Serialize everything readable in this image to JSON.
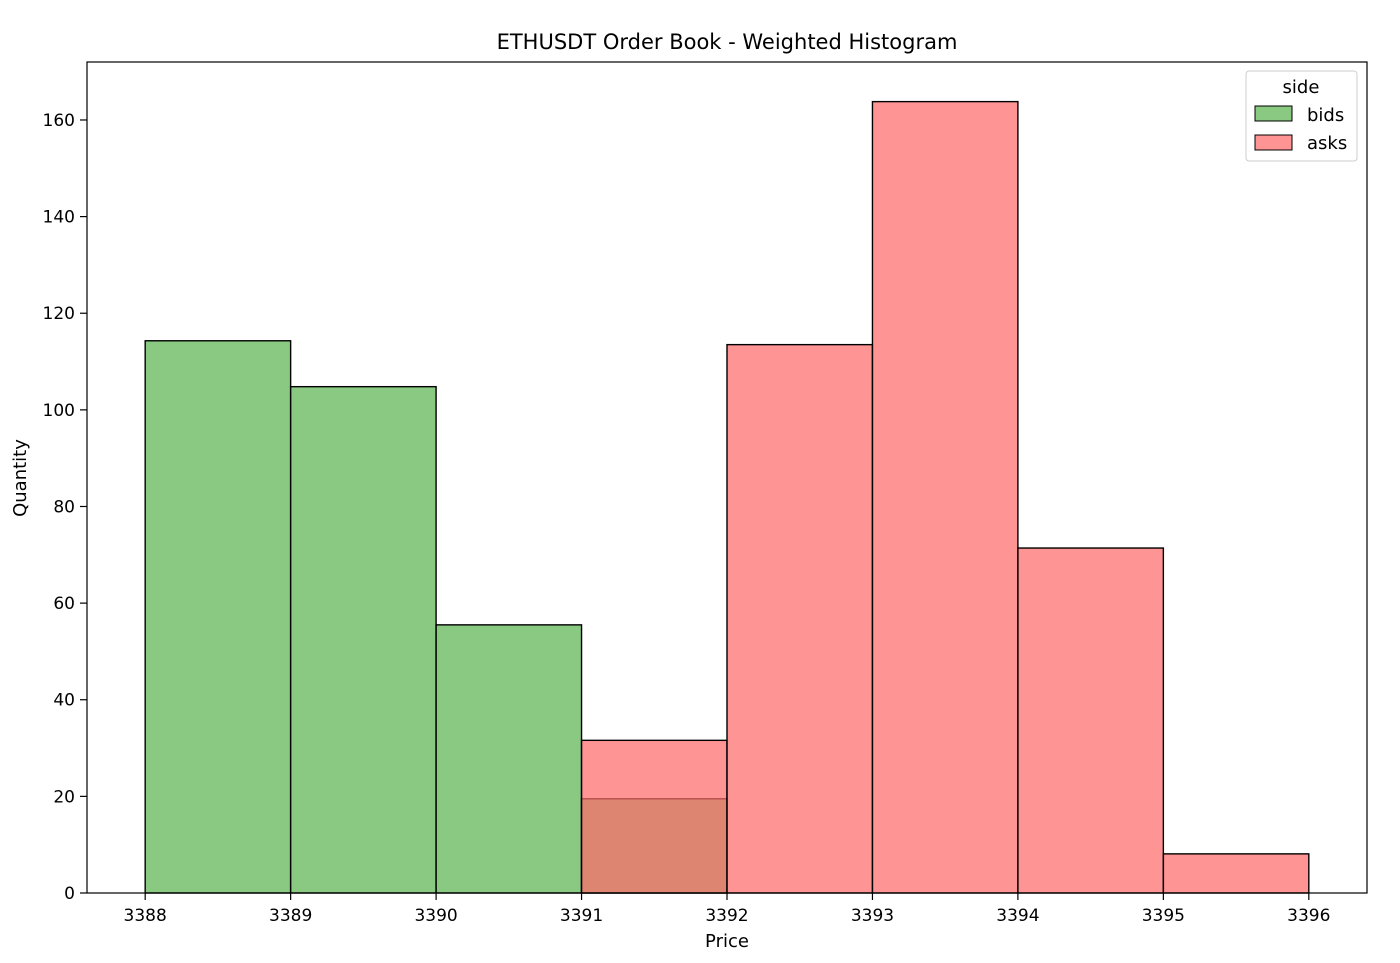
{
  "chart_data": {
    "type": "bar",
    "title": "ETHUSDT Order Book - Weighted Histogram",
    "xlabel": "Price",
    "ylabel": "Quantity",
    "xlim": [
      3387.6,
      3396.4
    ],
    "ylim": [
      0,
      172
    ],
    "xticks": [
      3388,
      3389,
      3390,
      3391,
      3392,
      3393,
      3394,
      3395,
      3396
    ],
    "yticks": [
      0,
      20,
      40,
      60,
      80,
      100,
      120,
      140,
      160
    ],
    "grid": false,
    "legend": {
      "title": "side",
      "placement": "top-right"
    },
    "series": [
      {
        "name": "bids",
        "color": "#5bb450",
        "bins": [
          {
            "x0": 3388,
            "x1": 3389,
            "value": 114.3
          },
          {
            "x0": 3389,
            "x1": 3390,
            "value": 104.8
          },
          {
            "x0": 3390,
            "x1": 3391,
            "value": 55.5
          },
          {
            "x0": 3391,
            "x1": 3392,
            "value": 19.5
          }
        ]
      },
      {
        "name": "asks",
        "color": "#ff6b6b",
        "bins": [
          {
            "x0": 3391,
            "x1": 3392,
            "value": 31.6
          },
          {
            "x0": 3392,
            "x1": 3393,
            "value": 113.5
          },
          {
            "x0": 3393,
            "x1": 3394,
            "value": 163.8
          },
          {
            "x0": 3394,
            "x1": 3395,
            "value": 71.4
          },
          {
            "x0": 3395,
            "x1": 3396,
            "value": 8.1
          }
        ]
      }
    ]
  }
}
